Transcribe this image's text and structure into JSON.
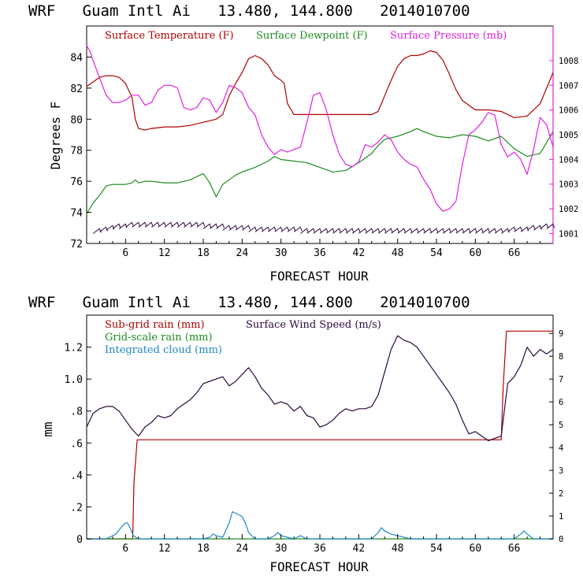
{
  "chart_data": [
    {
      "type": "line",
      "title": "WRF   Guam Intl Ai   13.480, 144.800   2014010700",
      "xlabel": "FORECAST HOUR",
      "ylabel": "Degrees F",
      "xlim": [
        0,
        72
      ],
      "ylim": [
        72,
        86
      ],
      "y2lim": [
        1000.6,
        1009.4
      ],
      "xticks": [
        "6",
        "12",
        "18",
        "24",
        "30",
        "36",
        "42",
        "48",
        "54",
        "60",
        "66"
      ],
      "yticks": [
        "72",
        "74",
        "76",
        "78",
        "80",
        "82",
        "84"
      ],
      "y2ticks": [
        "1001",
        "1002",
        "1003",
        "1004",
        "1005",
        "1006",
        "1007",
        "1008"
      ],
      "series": [
        {
          "name": "Surface Temperature (F)",
          "color": "#b00000",
          "axis": "left",
          "x": [
            0,
            2,
            3,
            4,
            5,
            6,
            7,
            7.5,
            8,
            9,
            10,
            12,
            14,
            16,
            18,
            20,
            21,
            22,
            23,
            24,
            25,
            26,
            27,
            28,
            29,
            30,
            30.5,
            31,
            32,
            34,
            36,
            38,
            40,
            42,
            44,
            45,
            46,
            47,
            48,
            49,
            50,
            51,
            52,
            53,
            54,
            55,
            56,
            57,
            58,
            60,
            62,
            64,
            66,
            68,
            70,
            72
          ],
          "values": [
            82.1,
            82.7,
            82.8,
            82.8,
            82.7,
            82.3,
            81.4,
            80.0,
            79.4,
            79.3,
            79.4,
            79.5,
            79.5,
            79.6,
            79.8,
            80.0,
            80.3,
            81.5,
            82.3,
            83.0,
            83.9,
            84.1,
            83.9,
            83.5,
            82.8,
            82.5,
            82.3,
            81.0,
            80.3,
            80.3,
            80.3,
            80.3,
            80.3,
            80.3,
            80.3,
            80.5,
            81.5,
            82.5,
            83.4,
            83.9,
            84.1,
            84.1,
            84.2,
            84.4,
            84.3,
            83.8,
            82.9,
            81.9,
            81.2,
            80.6,
            80.6,
            80.5,
            80.1,
            80.2,
            81.0,
            83.0
          ]
        },
        {
          "name": "Surface Dewpoint (F)",
          "color": "#1f8c1f",
          "axis": "left",
          "x": [
            0,
            1,
            2,
            3,
            4,
            5,
            6,
            7,
            7.5,
            8,
            9,
            10,
            12,
            14,
            16,
            18,
            19,
            20,
            21,
            22,
            23,
            24,
            26,
            28,
            29,
            30,
            32,
            34,
            36,
            38,
            40,
            42,
            44,
            45,
            46,
            48,
            50,
            51,
            52,
            54,
            56,
            58,
            60,
            62,
            64,
            66,
            68,
            70,
            72
          ],
          "values": [
            73.9,
            74.6,
            75.1,
            75.7,
            75.8,
            75.8,
            75.8,
            75.9,
            76.1,
            75.9,
            76.0,
            76.0,
            75.9,
            75.9,
            76.1,
            76.5,
            75.9,
            75.0,
            75.8,
            76.1,
            76.4,
            76.6,
            76.9,
            77.3,
            77.6,
            77.4,
            77.3,
            77.2,
            76.9,
            76.6,
            76.7,
            77.2,
            77.8,
            78.3,
            78.7,
            78.9,
            79.2,
            79.4,
            79.2,
            78.9,
            78.8,
            79.0,
            78.9,
            78.6,
            78.9,
            78.1,
            77.6,
            77.8,
            79.2
          ]
        },
        {
          "name": "Surface Pressure (mb)",
          "color": "#e020e0",
          "axis": "right",
          "x": [
            0,
            0.5,
            1,
            2,
            3,
            4,
            5,
            6,
            7,
            8,
            9,
            10,
            11,
            12,
            13,
            14,
            15,
            16,
            17,
            18,
            19,
            20,
            21,
            22,
            23,
            24,
            25,
            26,
            27,
            28,
            29,
            30,
            31,
            32,
            33,
            34,
            35,
            36,
            37,
            38,
            39,
            40,
            41,
            42,
            43,
            44,
            45,
            46,
            47,
            48,
            49,
            50,
            51,
            52,
            53,
            54,
            55,
            56,
            57,
            58,
            59,
            60,
            61,
            62,
            63,
            64,
            65,
            66,
            67,
            68,
            69,
            70,
            71,
            72
          ],
          "values": [
            1008.6,
            1008.4,
            1008.0,
            1007.3,
            1006.6,
            1006.3,
            1006.3,
            1006.4,
            1006.6,
            1006.6,
            1006.2,
            1006.3,
            1006.8,
            1007.0,
            1007.0,
            1006.9,
            1006.1,
            1006.0,
            1006.1,
            1006.5,
            1006.4,
            1005.9,
            1006.3,
            1007.0,
            1006.9,
            1006.7,
            1006.1,
            1005.8,
            1005.0,
            1004.5,
            1004.2,
            1004.4,
            1004.3,
            1004.4,
            1004.5,
            1005.5,
            1006.6,
            1006.7,
            1006.0,
            1005.0,
            1004.2,
            1003.8,
            1003.7,
            1003.9,
            1004.6,
            1004.5,
            1004.7,
            1005.0,
            1004.8,
            1004.3,
            1004.0,
            1003.8,
            1003.7,
            1003.2,
            1002.8,
            1002.2,
            1001.9,
            1002.0,
            1002.3,
            1003.8,
            1005.0,
            1005.2,
            1005.5,
            1005.9,
            1005.8,
            1004.6,
            1004.1,
            1004.3,
            1004.0,
            1003.4,
            1004.4,
            1005.7,
            1005.4,
            1004.5
          ]
        },
        {
          "name": "Surface Wind (barbs)",
          "color": "#2b0a3d",
          "axis": "left",
          "kind": "barbs",
          "x": [
            1.5,
            2.5,
            3.5,
            4.5,
            5.5,
            6.5,
            7.5,
            8.5,
            9.5,
            10.5,
            11.5,
            12.5,
            13.5,
            14.5,
            15.5,
            16.5,
            17.5,
            18.5,
            19.5,
            20.5,
            21.5,
            22.5,
            23.5,
            24.5,
            25.5,
            26.5,
            27.5,
            28.5,
            29.5,
            30.5,
            31.5,
            32.5,
            33.5,
            34.5,
            35.5,
            36.5,
            37.5,
            38.5,
            39.5,
            40.5,
            41.5,
            42.5,
            43.5,
            44.5,
            45.5,
            46.5,
            47.5,
            48.5,
            49.5,
            50.5,
            51.5,
            52.5,
            53.5,
            54.5,
            55.5,
            56.5,
            57.5,
            58.5,
            59.5,
            60.5,
            61.5,
            62.5,
            63.5,
            64.5,
            65.5,
            66.5,
            67.5,
            68.5,
            69.5,
            70.5,
            71.5
          ],
          "values": [
            72.8,
            72.9,
            73.0,
            73.1,
            73.1,
            73.2,
            73.2,
            73.2,
            73.2,
            73.2,
            73.2,
            73.2,
            73.2,
            73.2,
            73.2,
            73.2,
            73.2,
            73.1,
            73.1,
            73.1,
            73.0,
            73.0,
            73.0,
            73.0,
            72.9,
            72.9,
            72.9,
            72.9,
            72.9,
            72.9,
            72.9,
            72.9,
            72.8,
            72.8,
            72.8,
            72.8,
            72.8,
            72.8,
            72.8,
            72.8,
            72.8,
            72.8,
            72.8,
            72.8,
            72.8,
            72.8,
            72.8,
            72.8,
            72.8,
            72.8,
            72.8,
            72.8,
            72.8,
            72.8,
            72.8,
            72.8,
            72.8,
            72.8,
            72.8,
            72.8,
            72.8,
            72.8,
            72.8,
            72.8,
            72.9,
            72.9,
            72.9,
            73.0,
            73.0,
            73.1,
            73.1
          ]
        }
      ]
    },
    {
      "type": "line",
      "title": "WRF   Guam Intl Ai   13.480, 144.800   2014010700",
      "xlabel": "FORECAST HOUR",
      "ylabel": "mm",
      "xlim": [
        0,
        72
      ],
      "ylim": [
        0,
        1.4
      ],
      "y2lim": [
        0,
        9.8
      ],
      "xticks": [
        "6",
        "12",
        "18",
        "24",
        "30",
        "36",
        "42",
        "48",
        "54",
        "60",
        "66"
      ],
      "yticks": [
        "0",
        ".2",
        ".4",
        ".6",
        ".8",
        "1.0",
        "1.2"
      ],
      "ytick_values": [
        0,
        0.2,
        0.4,
        0.6,
        0.8,
        1.0,
        1.2
      ],
      "y2ticks": [
        "0",
        "1",
        "2",
        "3",
        "4",
        "5",
        "6",
        "7",
        "8",
        "9"
      ],
      "series": [
        {
          "name": "Sub-grid rain (mm)",
          "color": "#b00000",
          "axis": "left",
          "x": [
            0,
            7.1,
            7.3,
            7.8,
            64,
            64.3,
            64.8,
            72
          ],
          "values": [
            0,
            0,
            0.35,
            0.62,
            0.62,
            0.95,
            1.3,
            1.3
          ]
        },
        {
          "name": "Grid-scale rain (mm)",
          "color": "#1f8c1f",
          "axis": "left",
          "x": [
            0,
            72
          ],
          "values": [
            0,
            0
          ]
        },
        {
          "name": "Integrated cloud (mm)",
          "color": "#1e88c8",
          "axis": "left",
          "x": [
            0,
            3,
            4.5,
            5.5,
            6,
            6.3,
            6.8,
            7.2,
            8,
            18,
            19,
            19.5,
            20,
            21,
            22,
            22.5,
            23,
            23.5,
            24,
            24.5,
            25,
            26,
            28,
            29,
            29.5,
            30,
            32,
            33,
            34,
            40,
            44,
            45,
            45.5,
            46,
            47,
            50,
            60,
            66,
            67,
            67.5,
            68,
            69,
            72
          ],
          "values": [
            0,
            0,
            0.03,
            0.08,
            0.1,
            0.1,
            0.06,
            0.02,
            0,
            0,
            0.01,
            0.03,
            0.02,
            0.01,
            0.1,
            0.17,
            0.16,
            0.15,
            0.14,
            0.1,
            0.04,
            0,
            0,
            0.02,
            0.04,
            0.02,
            0,
            0.02,
            0,
            0,
            0,
            0.04,
            0.07,
            0.05,
            0.03,
            0,
            0,
            0,
            0.03,
            0.05,
            0.03,
            0,
            0
          ]
        },
        {
          "name": "Surface Wind Speed (m/s)",
          "color": "#2b0a3d",
          "axis": "right",
          "x": [
            0,
            1,
            2,
            3,
            4,
            5,
            6,
            7,
            8,
            9,
            10,
            11,
            12,
            13,
            14,
            15,
            16,
            17,
            18,
            19,
            20,
            21,
            22,
            23,
            24,
            25,
            26,
            27,
            28,
            29,
            30,
            31,
            32,
            33,
            34,
            35,
            36,
            37,
            38,
            39,
            40,
            41,
            42,
            43,
            44,
            45,
            46,
            47,
            48,
            49,
            50,
            51,
            52,
            53,
            54,
            55,
            56,
            57,
            58,
            59,
            60,
            61,
            62,
            63,
            64,
            65,
            66,
            67,
            68,
            69,
            70,
            71,
            72
          ],
          "values": [
            4.9,
            5.5,
            5.7,
            5.8,
            5.8,
            5.6,
            5.2,
            4.8,
            4.5,
            4.9,
            5.1,
            5.4,
            5.3,
            5.4,
            5.7,
            5.9,
            6.1,
            6.4,
            6.8,
            6.9,
            7.0,
            7.1,
            6.7,
            6.9,
            7.2,
            7.5,
            7.1,
            6.6,
            6.3,
            5.9,
            6.0,
            5.9,
            5.6,
            5.8,
            5.4,
            5.3,
            4.9,
            5.0,
            5.2,
            5.5,
            5.7,
            5.6,
            5.7,
            5.7,
            5.8,
            6.3,
            7.3,
            8.3,
            8.9,
            8.7,
            8.6,
            8.4,
            8.0,
            7.6,
            7.2,
            6.8,
            6.4,
            5.9,
            5.2,
            4.6,
            4.7,
            4.5,
            4.3,
            4.4,
            4.5,
            6.8,
            7.1,
            7.6,
            8.4,
            8.0,
            8.3,
            8.1,
            8.3
          ]
        }
      ]
    }
  ]
}
